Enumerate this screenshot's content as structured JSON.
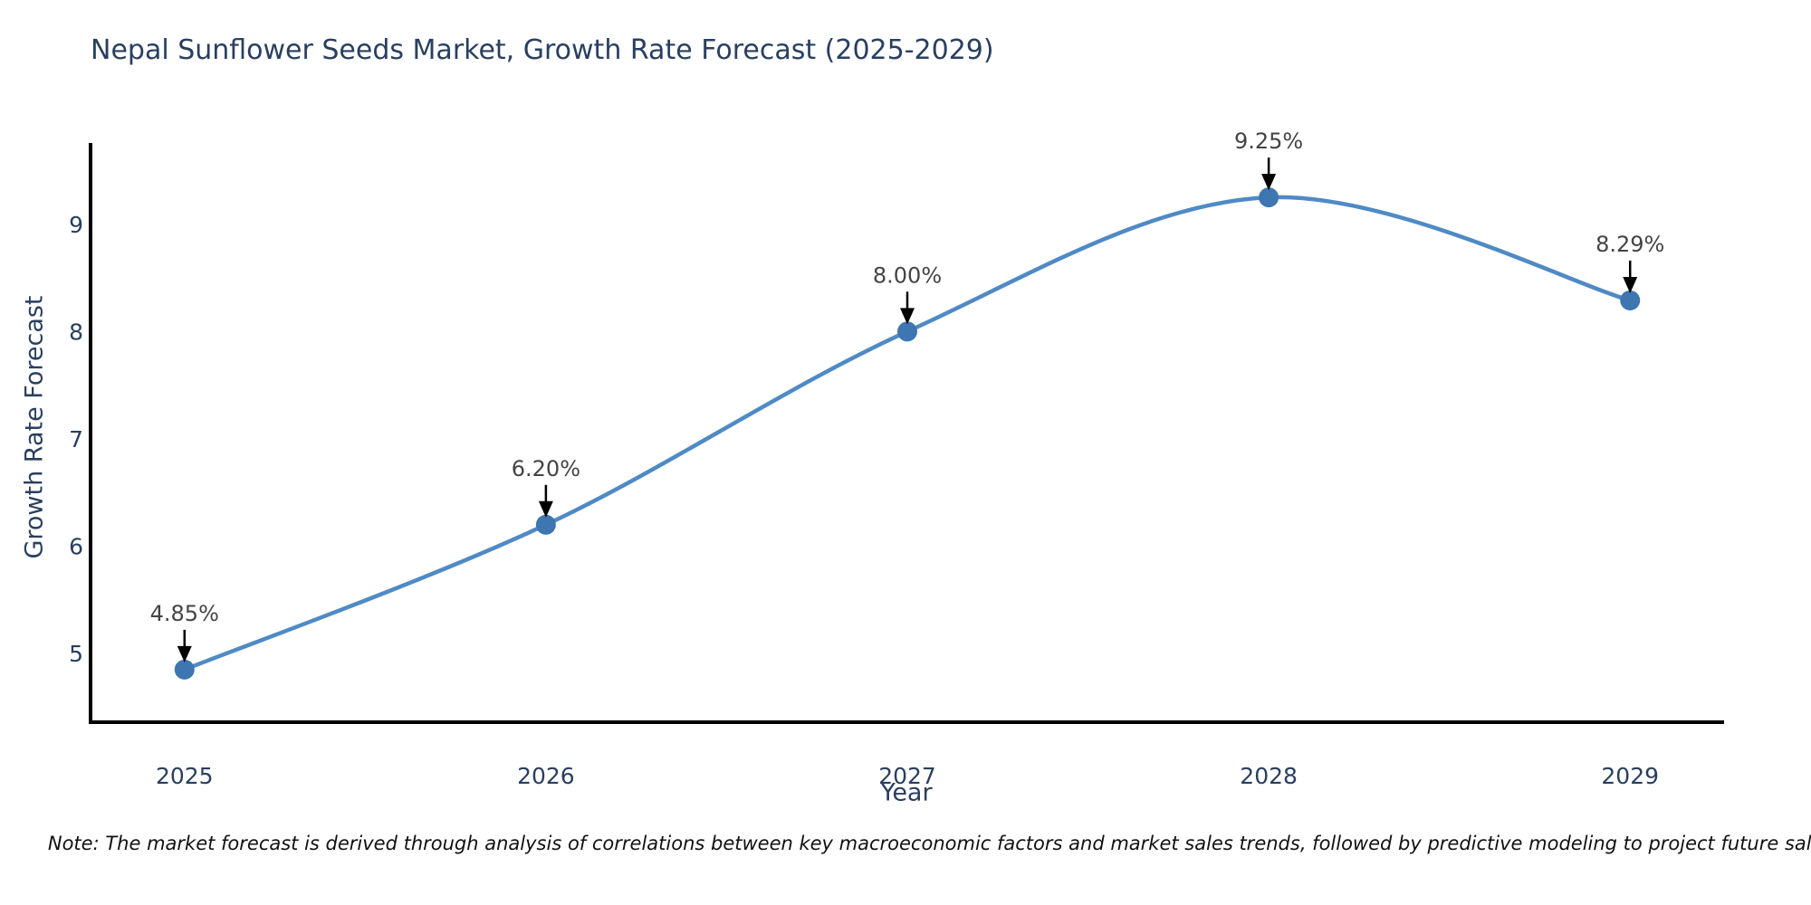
{
  "figure": {
    "note": "Note: The market forecast is derived through analysis of correlations between key macroeconomic factors and market sales trends, followed by predictive modeling to project future sales."
  },
  "chart_data": {
    "type": "line",
    "title": "Nepal Sunflower Seeds Market, Growth Rate Forecast (2025-2029)",
    "xlabel": "Year",
    "ylabel": "Growth Rate Forecast",
    "x": [
      2025,
      2026,
      2027,
      2028,
      2029
    ],
    "values": [
      4.85,
      6.2,
      8.0,
      9.25,
      8.29
    ],
    "point_labels": [
      "4.85%",
      "6.20%",
      "8.00%",
      "9.25%",
      "8.29%"
    ],
    "x_tick_labels": [
      "2025",
      "2026",
      "2027",
      "2028",
      "2029"
    ],
    "y_tick_values": [
      5,
      6,
      7,
      8,
      9
    ],
    "xlim": [
      2024.74,
      2029.26
    ],
    "ylim": [
      4.36,
      9.74
    ],
    "grid": false,
    "legend": "none",
    "line_shape": "spline",
    "annotation_style": "label-above-with-down-arrow",
    "colors": {
      "line": "#4f8ac5",
      "marker": "#3d76b0",
      "axis": "#000000",
      "title": "#2a3f5f",
      "tick_label": "#2a3f5f",
      "axis_label": "#2a3f5f",
      "annotation_text": "#444444",
      "arrow": "#000000",
      "background": "#ffffff"
    }
  }
}
